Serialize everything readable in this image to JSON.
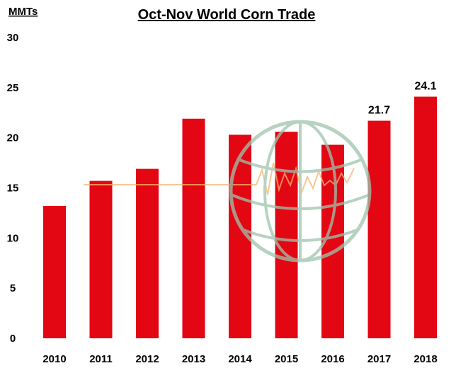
{
  "chart_data": {
    "type": "bar",
    "title": "Oct-Nov World Corn Trade",
    "ylabel": "MMTs",
    "xlabel": "",
    "categories": [
      "2010",
      "2011",
      "2012",
      "2013",
      "2014",
      "2015",
      "2016",
      "2017",
      "2018"
    ],
    "values": [
      13.2,
      15.7,
      16.9,
      21.9,
      20.3,
      20.6,
      19.3,
      21.7,
      24.1
    ],
    "data_labels": [
      "",
      "",
      "",
      "",
      "",
      "",
      "",
      "21.7",
      "24.1"
    ],
    "ylim": [
      0,
      30
    ],
    "yticks": [
      "0",
      "5",
      "10",
      "15",
      "20",
      "25",
      "30"
    ],
    "grid": false,
    "legend": "none",
    "bar_color": "#e30613",
    "watermark_color": "#9ec4ad",
    "watermark_line_color": "#f5b56e"
  }
}
